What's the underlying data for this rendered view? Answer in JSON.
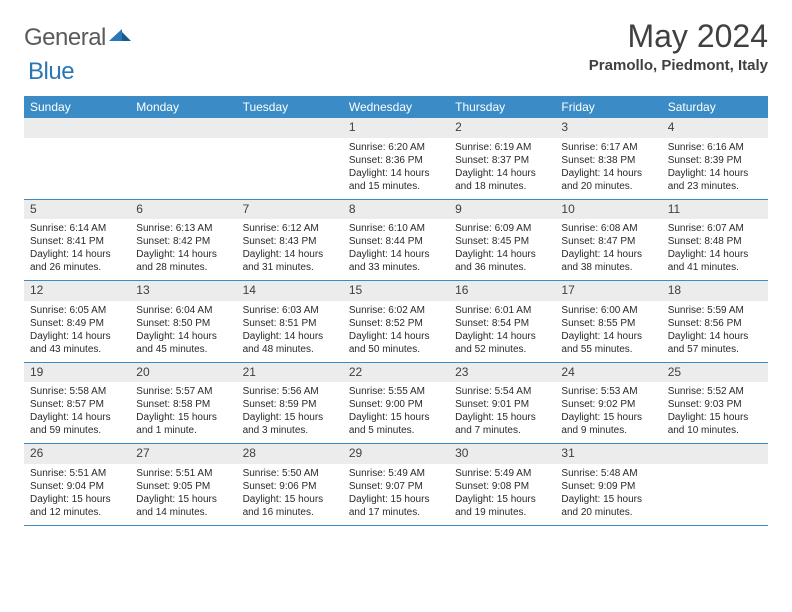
{
  "logo": {
    "general": "General",
    "blue": "Blue"
  },
  "title": "May 2024",
  "location": "Pramollo, Piedmont, Italy",
  "colors": {
    "header_bg": "#3b8bc6",
    "header_text": "#ffffff",
    "daynum_bg": "#ececec",
    "row_border": "#3b8bc6",
    "text": "#2a2a2a",
    "logo_gray": "#5a5a5a",
    "logo_blue": "#2b77b5"
  },
  "day_headers": [
    "Sunday",
    "Monday",
    "Tuesday",
    "Wednesday",
    "Thursday",
    "Friday",
    "Saturday"
  ],
  "weeks": [
    [
      null,
      null,
      null,
      {
        "n": "1",
        "sr": "6:20 AM",
        "ss": "8:36 PM",
        "dl": "14 hours and 15 minutes."
      },
      {
        "n": "2",
        "sr": "6:19 AM",
        "ss": "8:37 PM",
        "dl": "14 hours and 18 minutes."
      },
      {
        "n": "3",
        "sr": "6:17 AM",
        "ss": "8:38 PM",
        "dl": "14 hours and 20 minutes."
      },
      {
        "n": "4",
        "sr": "6:16 AM",
        "ss": "8:39 PM",
        "dl": "14 hours and 23 minutes."
      }
    ],
    [
      {
        "n": "5",
        "sr": "6:14 AM",
        "ss": "8:41 PM",
        "dl": "14 hours and 26 minutes."
      },
      {
        "n": "6",
        "sr": "6:13 AM",
        "ss": "8:42 PM",
        "dl": "14 hours and 28 minutes."
      },
      {
        "n": "7",
        "sr": "6:12 AM",
        "ss": "8:43 PM",
        "dl": "14 hours and 31 minutes."
      },
      {
        "n": "8",
        "sr": "6:10 AM",
        "ss": "8:44 PM",
        "dl": "14 hours and 33 minutes."
      },
      {
        "n": "9",
        "sr": "6:09 AM",
        "ss": "8:45 PM",
        "dl": "14 hours and 36 minutes."
      },
      {
        "n": "10",
        "sr": "6:08 AM",
        "ss": "8:47 PM",
        "dl": "14 hours and 38 minutes."
      },
      {
        "n": "11",
        "sr": "6:07 AM",
        "ss": "8:48 PM",
        "dl": "14 hours and 41 minutes."
      }
    ],
    [
      {
        "n": "12",
        "sr": "6:05 AM",
        "ss": "8:49 PM",
        "dl": "14 hours and 43 minutes."
      },
      {
        "n": "13",
        "sr": "6:04 AM",
        "ss": "8:50 PM",
        "dl": "14 hours and 45 minutes."
      },
      {
        "n": "14",
        "sr": "6:03 AM",
        "ss": "8:51 PM",
        "dl": "14 hours and 48 minutes."
      },
      {
        "n": "15",
        "sr": "6:02 AM",
        "ss": "8:52 PM",
        "dl": "14 hours and 50 minutes."
      },
      {
        "n": "16",
        "sr": "6:01 AM",
        "ss": "8:54 PM",
        "dl": "14 hours and 52 minutes."
      },
      {
        "n": "17",
        "sr": "6:00 AM",
        "ss": "8:55 PM",
        "dl": "14 hours and 55 minutes."
      },
      {
        "n": "18",
        "sr": "5:59 AM",
        "ss": "8:56 PM",
        "dl": "14 hours and 57 minutes."
      }
    ],
    [
      {
        "n": "19",
        "sr": "5:58 AM",
        "ss": "8:57 PM",
        "dl": "14 hours and 59 minutes."
      },
      {
        "n": "20",
        "sr": "5:57 AM",
        "ss": "8:58 PM",
        "dl": "15 hours and 1 minute."
      },
      {
        "n": "21",
        "sr": "5:56 AM",
        "ss": "8:59 PM",
        "dl": "15 hours and 3 minutes."
      },
      {
        "n": "22",
        "sr": "5:55 AM",
        "ss": "9:00 PM",
        "dl": "15 hours and 5 minutes."
      },
      {
        "n": "23",
        "sr": "5:54 AM",
        "ss": "9:01 PM",
        "dl": "15 hours and 7 minutes."
      },
      {
        "n": "24",
        "sr": "5:53 AM",
        "ss": "9:02 PM",
        "dl": "15 hours and 9 minutes."
      },
      {
        "n": "25",
        "sr": "5:52 AM",
        "ss": "9:03 PM",
        "dl": "15 hours and 10 minutes."
      }
    ],
    [
      {
        "n": "26",
        "sr": "5:51 AM",
        "ss": "9:04 PM",
        "dl": "15 hours and 12 minutes."
      },
      {
        "n": "27",
        "sr": "5:51 AM",
        "ss": "9:05 PM",
        "dl": "15 hours and 14 minutes."
      },
      {
        "n": "28",
        "sr": "5:50 AM",
        "ss": "9:06 PM",
        "dl": "15 hours and 16 minutes."
      },
      {
        "n": "29",
        "sr": "5:49 AM",
        "ss": "9:07 PM",
        "dl": "15 hours and 17 minutes."
      },
      {
        "n": "30",
        "sr": "5:49 AM",
        "ss": "9:08 PM",
        "dl": "15 hours and 19 minutes."
      },
      {
        "n": "31",
        "sr": "5:48 AM",
        "ss": "9:09 PM",
        "dl": "15 hours and 20 minutes."
      },
      null
    ]
  ],
  "labels": {
    "sunrise": "Sunrise: ",
    "sunset": "Sunset: ",
    "daylight": "Daylight: "
  }
}
